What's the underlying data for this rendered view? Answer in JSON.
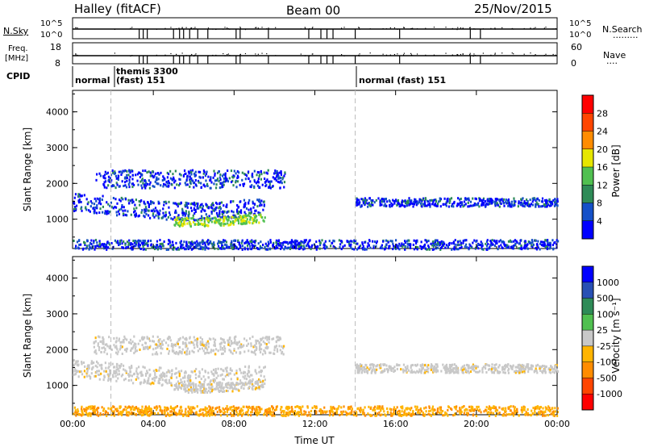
{
  "header": {
    "station": "Halley (fitACF)",
    "beam": "Beam 00",
    "date": "25/Nov/2015"
  },
  "nsky_panel": {
    "left_label": "N.Sky",
    "left_ticks": [
      "10^5",
      "10^0"
    ],
    "right_ticks": [
      "10^5",
      "10^0"
    ],
    "right_label": "N.Search",
    "right_legend": "·········"
  },
  "freq_panel": {
    "left_label_line1": "Freq.",
    "left_label_line2": "[MHz]",
    "left_ticks": [
      "18",
      "8"
    ],
    "right_ticks": [
      "60",
      "0"
    ],
    "right_label": "Nave",
    "right_legend": "····"
  },
  "cpid": {
    "label": "CPID",
    "segments": [
      {
        "text": "normal",
        "start": 0.0
      },
      {
        "text": "themis 3300",
        "start": 1.9
      },
      {
        "text": "(fast) 151",
        "start": 1.9
      },
      {
        "text": "normal (fast) 151",
        "start": 14.0
      }
    ]
  },
  "power_colorbar": {
    "label": "Power [dB]",
    "ticks": [
      "4",
      "8",
      "12",
      "16",
      "20",
      "24",
      "28"
    ],
    "colors": [
      "#0000ff",
      "#1450c8",
      "#2e8b57",
      "#50c050",
      "#e6e600",
      "#ff8c00",
      "#ff4500",
      "#ff0000"
    ]
  },
  "velocity_colorbar": {
    "label": "Velocity [m s⁻¹]",
    "ticks": [
      "1000",
      "500",
      "100",
      "25",
      "-25",
      "-100",
      "-500",
      "-1000"
    ],
    "colors": [
      "#0000ff",
      "#2850b4",
      "#2e8b57",
      "#50c050",
      "#c8c8c8",
      "#ffb400",
      "#ff8c00",
      "#ff4500",
      "#ff0000"
    ]
  },
  "chart_data": {
    "type": "heatmap",
    "ylabel": "Slant Range [km]",
    "xlabel": "Time UT",
    "xlim": [
      0,
      24
    ],
    "ylim": [
      180,
      4600
    ],
    "x_ticks": [
      "00:00",
      "04:00",
      "08:00",
      "12:00",
      "16:00",
      "20:00",
      "00:00"
    ],
    "y_ticks": [
      "1000",
      "2000",
      "3000",
      "4000"
    ],
    "dashed_vlines": [
      1.9,
      14.0
    ],
    "echo_bands": [
      {
        "t_start": 0.0,
        "t_end": 9.5,
        "r_center": 1400,
        "r_width": 250,
        "power": "8-12",
        "velocity": "near zero"
      },
      {
        "t_start": 5.0,
        "t_end": 9.5,
        "r_center": 1100,
        "r_width": 120,
        "power": "16-20",
        "velocity": "near zero"
      },
      {
        "t_start": 1.0,
        "t_end": 10.5,
        "r_center": 2150,
        "r_width": 250,
        "power": "4-8",
        "velocity": "near zero"
      },
      {
        "t_start": 14.0,
        "t_end": 24.0,
        "r_center": 1500,
        "r_width": 120,
        "power": "8-12",
        "velocity": "near zero"
      },
      {
        "t_start": 0.0,
        "t_end": 24.0,
        "r_center": 300,
        "r_width": 150,
        "power": "4-8",
        "velocity": "negative"
      }
    ]
  }
}
